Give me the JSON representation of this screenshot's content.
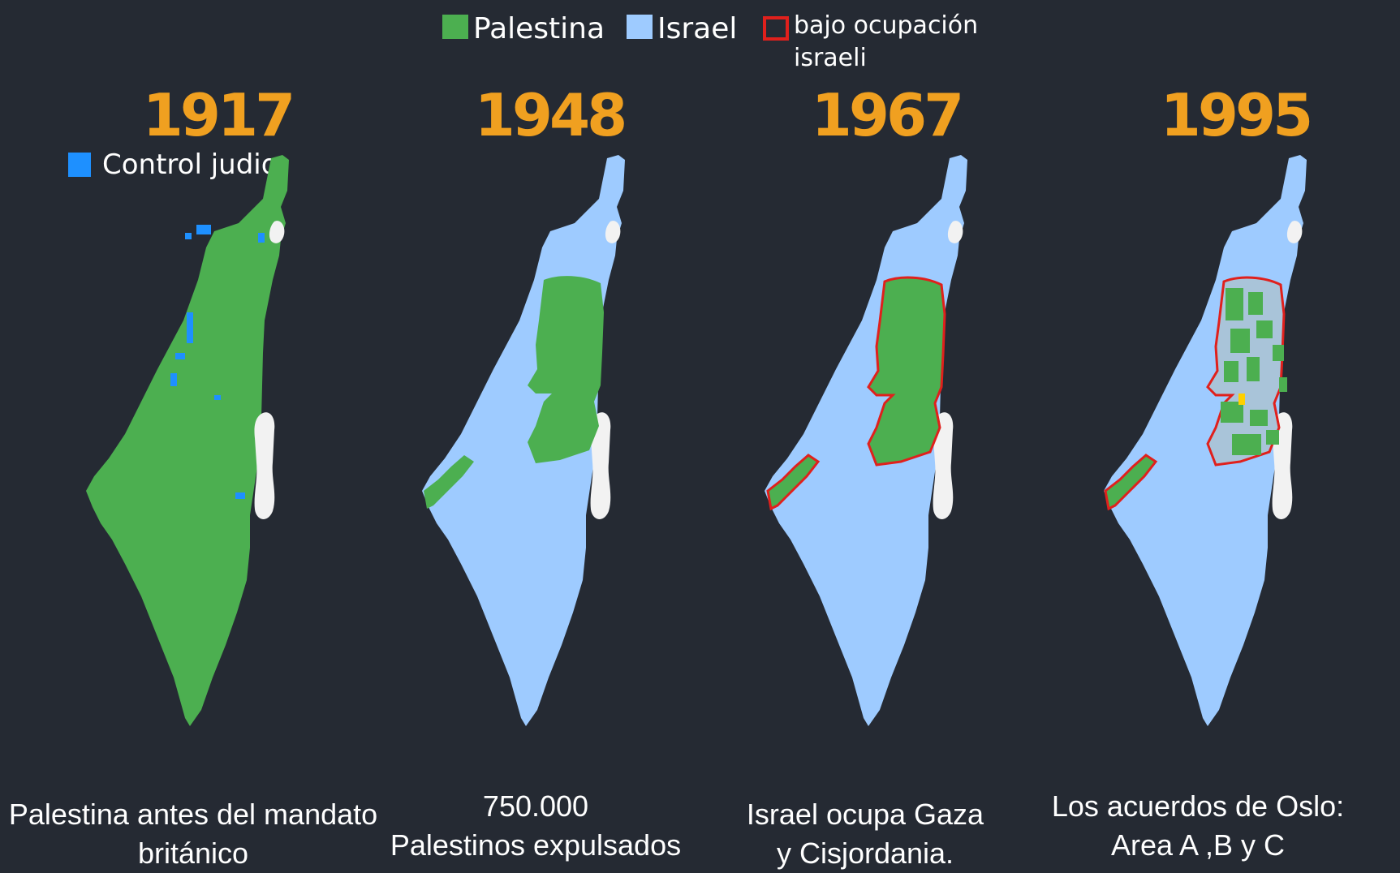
{
  "legend": {
    "palestine_label": "Palestina",
    "israel_label": "Israel",
    "occupation_label": "bajo ocupación israeli",
    "jewish_control_label": "Control judio"
  },
  "colors": {
    "background": "#252a33",
    "palestine": "#4caf50",
    "israel": "#9ecbff",
    "occupation_border": "#e0201c",
    "jewish_control": "#1e90ff",
    "year": "#f0a020",
    "water": "#f2f2f2"
  },
  "panels": [
    {
      "year": "1917",
      "caption_lines": [
        "Palestina antes del mandato",
        "británico"
      ]
    },
    {
      "year": "1948",
      "caption_lines": [
        "750.000",
        "Palestinos expulsados"
      ]
    },
    {
      "year": "1967",
      "caption_lines": [
        "Israel ocupa Gaza",
        "y Cisjordania."
      ]
    },
    {
      "year": "1995",
      "caption_lines": [
        "Los acuerdos de Oslo:",
        "Area A ,B y C"
      ]
    }
  ]
}
